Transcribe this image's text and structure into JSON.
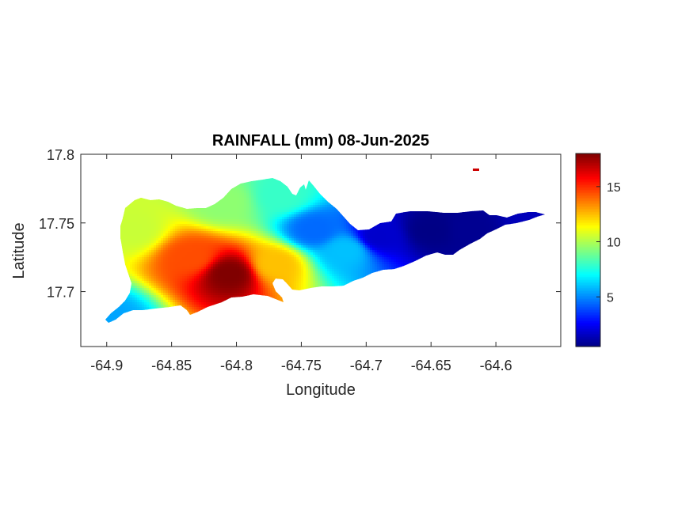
{
  "figure": {
    "title": "RAINFALL (mm) 08-Jun-2025",
    "xlabel": "Longitude",
    "ylabel": "Latitude"
  },
  "chart_data": {
    "type": "heatmap",
    "title": "RAINFALL (mm) 08-Jun-2025",
    "xlabel": "Longitude",
    "ylabel": "Latitude",
    "xlim": [
      -64.92,
      -64.55
    ],
    "ylim": [
      17.66,
      17.8
    ],
    "xticks": [
      -64.9,
      -64.85,
      -64.8,
      -64.75,
      -64.7,
      -64.65,
      -64.6
    ],
    "xtick_labels": [
      "-64.9",
      "-64.85",
      "-64.8",
      "-64.75",
      "-64.7",
      "-64.65",
      "-64.6"
    ],
    "yticks": [
      17.7,
      17.75,
      17.8
    ],
    "ytick_labels": [
      "17.7",
      "17.75",
      "17.8"
    ],
    "grid": false,
    "colormap": "jet",
    "colorbar": {
      "location": "right",
      "range": [
        0.5,
        18
      ],
      "ticks": [
        5,
        10,
        15
      ],
      "tick_labels": [
        "5",
        "10",
        "15"
      ]
    },
    "field_anchors": [
      {
        "lon": -64.805,
        "lat": 17.713,
        "value": 18.0
      },
      {
        "lon": -64.835,
        "lat": 17.725,
        "value": 14.5
      },
      {
        "lon": -64.77,
        "lat": 17.72,
        "value": 12.5
      },
      {
        "lon": -64.88,
        "lat": 17.745,
        "value": 10.5
      },
      {
        "lon": -64.81,
        "lat": 17.765,
        "value": 9.5
      },
      {
        "lon": -64.765,
        "lat": 17.77,
        "value": 8.0
      },
      {
        "lon": -64.9,
        "lat": 17.68,
        "value": 5.5
      },
      {
        "lon": -64.74,
        "lat": 17.745,
        "value": 4.5
      },
      {
        "lon": -64.715,
        "lat": 17.73,
        "value": 6.0
      },
      {
        "lon": -64.69,
        "lat": 17.74,
        "value": 1.8
      },
      {
        "lon": -64.65,
        "lat": 17.745,
        "value": 0.6
      },
      {
        "lon": -64.62,
        "lat": 17.745,
        "value": 0.8
      },
      {
        "lon": -64.57,
        "lat": 17.753,
        "value": 1.5
      }
    ]
  }
}
